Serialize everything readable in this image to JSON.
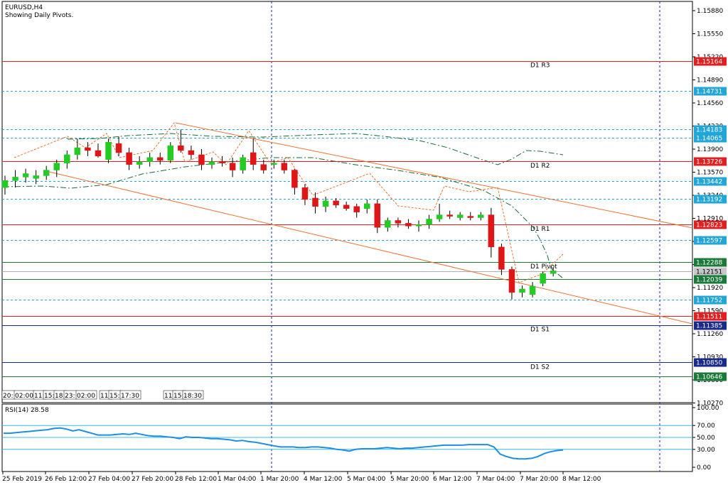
{
  "window": {
    "symbol_title": "EURUSD,H4",
    "subtitle": "Showing Daily Pivots."
  },
  "colors": {
    "background": "#ffffff",
    "bull": "#22cc22",
    "bear": "#e01515",
    "resistance": "#e02020",
    "support": "#1a2a8a",
    "pivot": "#1b7a3a",
    "dotted_level": "#22a6d8",
    "trendline": "#f07030",
    "fractal": "#f07030",
    "ma": "#1b6a3a",
    "rsi_line": "#1e8fe0",
    "rsi_level": "#38b8e8",
    "vline": "#1a2ab0",
    "grid_text": "#000000"
  },
  "price_axis": {
    "ticks": [
      "1.15880",
      "1.15550",
      "1.15220",
      "1.14890",
      "1.14560",
      "1.14230",
      "1.13900",
      "1.13570",
      "1.13240",
      "1.12910",
      "1.12580",
      "1.12250",
      "1.11920",
      "1.11590",
      "1.11260",
      "1.10930",
      "1.10600",
      "1.10270"
    ],
    "tags": [
      {
        "value": "1.15164",
        "style": "resistance"
      },
      {
        "value": "1.14731",
        "style": "dotted"
      },
      {
        "value": "1.14183",
        "style": "dotted"
      },
      {
        "value": "1.14065",
        "style": "dotted"
      },
      {
        "value": "1.13726",
        "style": "resistance"
      },
      {
        "value": "1.13442",
        "style": "dotted"
      },
      {
        "value": "1.13192",
        "style": "dotted"
      },
      {
        "value": "1.12823",
        "style": "resistance"
      },
      {
        "value": "1.12597",
        "style": "dotted"
      },
      {
        "value": "1.12288",
        "style": "pivot"
      },
      {
        "value": "1.12151",
        "style": "current"
      },
      {
        "value": "1.12039",
        "style": "pivot"
      },
      {
        "value": "1.11752",
        "style": "dotted"
      },
      {
        "value": "1.11511",
        "style": "resistance"
      },
      {
        "value": "1.11385",
        "style": "support"
      },
      {
        "value": "1.10850",
        "style": "support"
      },
      {
        "value": "1.10646",
        "style": "pivot"
      }
    ]
  },
  "pivot_labels": [
    {
      "text": "D1 R3",
      "level": 1.15164
    },
    {
      "text": "D1 R2",
      "level": 1.13726
    },
    {
      "text": "D1 R1",
      "level": 1.12823
    },
    {
      "text": "D1 Pivot",
      "level": 1.12288
    },
    {
      "text": "D1 S1",
      "level": 1.11385
    },
    {
      "text": "D1 S2",
      "level": 1.1085
    }
  ],
  "time_axis": {
    "labels": [
      "25 Feb 2019",
      "26 Feb 12:00",
      "27 Feb 04:00",
      "27 Feb 20:00",
      "28 Feb 12:00",
      "1 Mar 04:00",
      "1 Mar 20:00",
      "4 Mar 12:00",
      "5 Mar 04:00",
      "5 Mar 20:00",
      "6 Mar 12:00",
      "7 Mar 04:00",
      "7 Mar 20:00",
      "8 Mar 12:00"
    ],
    "overlay_labels": [
      "20:",
      "02:00",
      "11:",
      "15:",
      "18:",
      "23:",
      "02:00",
      "11:",
      "15:",
      "17:30",
      "11:",
      "15:",
      "18:30"
    ]
  },
  "rsi": {
    "title": "RSI(14) 28.58",
    "ticks": [
      "100.00",
      "70.00",
      "50.00",
      "30.00",
      "0.00"
    ],
    "levels": [
      70,
      50,
      30
    ]
  },
  "chart_data": {
    "type": "candlestick",
    "title": "EURUSD,H4",
    "subtitle": "Showing Daily Pivots.",
    "ylim": [
      1.1005,
      1.1605
    ],
    "candles": [
      {
        "o": 1.1335,
        "h": 1.1352,
        "l": 1.1325,
        "c": 1.1345
      },
      {
        "o": 1.1345,
        "h": 1.136,
        "l": 1.1335,
        "c": 1.135
      },
      {
        "o": 1.135,
        "h": 1.1362,
        "l": 1.1342,
        "c": 1.1355
      },
      {
        "o": 1.1348,
        "h": 1.136,
        "l": 1.134,
        "c": 1.1352
      },
      {
        "o": 1.1352,
        "h": 1.1366,
        "l": 1.1346,
        "c": 1.136
      },
      {
        "o": 1.136,
        "h": 1.1375,
        "l": 1.135,
        "c": 1.137
      },
      {
        "o": 1.137,
        "h": 1.1388,
        "l": 1.1362,
        "c": 1.1382
      },
      {
        "o": 1.1382,
        "h": 1.1405,
        "l": 1.1375,
        "c": 1.1392
      },
      {
        "o": 1.1392,
        "h": 1.14,
        "l": 1.138,
        "c": 1.1388
      },
      {
        "o": 1.1388,
        "h": 1.1398,
        "l": 1.1378,
        "c": 1.138
      },
      {
        "o": 1.1375,
        "h": 1.1405,
        "l": 1.137,
        "c": 1.14
      },
      {
        "o": 1.1398,
        "h": 1.1408,
        "l": 1.138,
        "c": 1.1385
      },
      {
        "o": 1.1385,
        "h": 1.1392,
        "l": 1.136,
        "c": 1.1368
      },
      {
        "o": 1.1368,
        "h": 1.138,
        "l": 1.1362,
        "c": 1.1372
      },
      {
        "o": 1.1372,
        "h": 1.1385,
        "l": 1.1365,
        "c": 1.1378
      },
      {
        "o": 1.1378,
        "h": 1.1385,
        "l": 1.1368,
        "c": 1.1374
      },
      {
        "o": 1.1374,
        "h": 1.14,
        "l": 1.137,
        "c": 1.1395
      },
      {
        "o": 1.1395,
        "h": 1.1418,
        "l": 1.1385,
        "c": 1.1388
      },
      {
        "o": 1.1388,
        "h": 1.1395,
        "l": 1.1375,
        "c": 1.1382
      },
      {
        "o": 1.1382,
        "h": 1.139,
        "l": 1.136,
        "c": 1.1368
      },
      {
        "o": 1.1368,
        "h": 1.1378,
        "l": 1.1362,
        "c": 1.1372
      },
      {
        "o": 1.1372,
        "h": 1.138,
        "l": 1.1365,
        "c": 1.137
      },
      {
        "o": 1.137,
        "h": 1.1378,
        "l": 1.135,
        "c": 1.136
      },
      {
        "o": 1.136,
        "h": 1.1382,
        "l": 1.1355,
        "c": 1.1378
      },
      {
        "o": 1.1385,
        "h": 1.1405,
        "l": 1.136,
        "c": 1.1368
      },
      {
        "o": 1.1368,
        "h": 1.1375,
        "l": 1.1355,
        "c": 1.136
      },
      {
        "o": 1.1368,
        "h": 1.1375,
        "l": 1.1362,
        "c": 1.137
      },
      {
        "o": 1.137,
        "h": 1.1375,
        "l": 1.1355,
        "c": 1.136
      },
      {
        "o": 1.136,
        "h": 1.1362,
        "l": 1.1325,
        "c": 1.1335
      },
      {
        "o": 1.1335,
        "h": 1.134,
        "l": 1.131,
        "c": 1.1318
      },
      {
        "o": 1.132,
        "h": 1.1328,
        "l": 1.1298,
        "c": 1.1308
      },
      {
        "o": 1.1308,
        "h": 1.1322,
        "l": 1.13,
        "c": 1.1316
      },
      {
        "o": 1.1316,
        "h": 1.132,
        "l": 1.1306,
        "c": 1.131
      },
      {
        "o": 1.131,
        "h": 1.1315,
        "l": 1.1302,
        "c": 1.1305
      },
      {
        "o": 1.1308,
        "h": 1.1312,
        "l": 1.1292,
        "c": 1.13
      },
      {
        "o": 1.1305,
        "h": 1.1318,
        "l": 1.1298,
        "c": 1.1312
      },
      {
        "o": 1.1312,
        "h": 1.1318,
        "l": 1.127,
        "c": 1.1278
      },
      {
        "o": 1.1278,
        "h": 1.1292,
        "l": 1.1272,
        "c": 1.1288
      },
      {
        "o": 1.1288,
        "h": 1.1292,
        "l": 1.1278,
        "c": 1.1284
      },
      {
        "o": 1.1284,
        "h": 1.129,
        "l": 1.1276,
        "c": 1.128
      },
      {
        "o": 1.128,
        "h": 1.1288,
        "l": 1.1272,
        "c": 1.1282
      },
      {
        "o": 1.1282,
        "h": 1.1296,
        "l": 1.1276,
        "c": 1.129
      },
      {
        "o": 1.129,
        "h": 1.1312,
        "l": 1.1286,
        "c": 1.1296
      },
      {
        "o": 1.1296,
        "h": 1.1302,
        "l": 1.129,
        "c": 1.1294
      },
      {
        "o": 1.1292,
        "h": 1.13,
        "l": 1.1288,
        "c": 1.1296
      },
      {
        "o": 1.1294,
        "h": 1.13,
        "l": 1.1288,
        "c": 1.1292
      },
      {
        "o": 1.1292,
        "h": 1.13,
        "l": 1.1288,
        "c": 1.1296
      },
      {
        "o": 1.1296,
        "h": 1.1306,
        "l": 1.1235,
        "c": 1.125
      },
      {
        "o": 1.125,
        "h": 1.1255,
        "l": 1.121,
        "c": 1.1218
      },
      {
        "o": 1.1218,
        "h": 1.1222,
        "l": 1.1175,
        "c": 1.1185
      },
      {
        "o": 1.1185,
        "h": 1.1195,
        "l": 1.1178,
        "c": 1.119
      },
      {
        "o": 1.1182,
        "h": 1.12,
        "l": 1.1178,
        "c": 1.1194
      },
      {
        "o": 1.1198,
        "h": 1.1215,
        "l": 1.1194,
        "c": 1.1212
      },
      {
        "o": 1.1212,
        "h": 1.122,
        "l": 1.1208,
        "c": 1.1216
      }
    ],
    "rsi_values": [
      57,
      57,
      58,
      59,
      60,
      61,
      62,
      63,
      65,
      66,
      64,
      61,
      63,
      60,
      57,
      54,
      54,
      54,
      55,
      56,
      55,
      57,
      55,
      53,
      52,
      52,
      51,
      50,
      48,
      51,
      50,
      50,
      49,
      48,
      48,
      47,
      46,
      44,
      45,
      43,
      42,
      40,
      38,
      36,
      34,
      34,
      34,
      33,
      33,
      34,
      34,
      33,
      32,
      30,
      29,
      27,
      30,
      31,
      31,
      31,
      32,
      33,
      32,
      31,
      32,
      32,
      33,
      34,
      35,
      36,
      37,
      37,
      37,
      37,
      38,
      38,
      38,
      38,
      34,
      22,
      18,
      15,
      14,
      14,
      15,
      18,
      23,
      26,
      28,
      29
    ]
  }
}
